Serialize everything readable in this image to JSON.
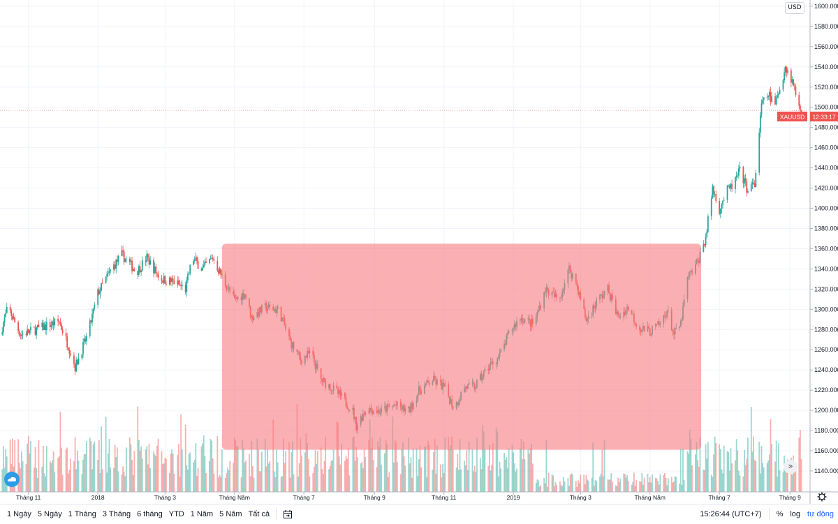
{
  "chart_data": {
    "type": "candlestick",
    "symbol": "XAUUSD",
    "currency": "USD",
    "price_axis": {
      "ticks": [
        1600,
        1580,
        1560,
        1540,
        1520,
        1500,
        1480,
        1460,
        1440,
        1420,
        1400,
        1380,
        1360,
        1340,
        1320,
        1300,
        1280,
        1260,
        1240,
        1220,
        1200,
        1180,
        1160,
        1140
      ],
      "range": [
        1128,
        1605
      ]
    },
    "time_axis": {
      "ticks": [
        {
          "date": "2017-11-01",
          "label": "Tháng 11"
        },
        {
          "date": "2018-01-01",
          "label": "2018"
        },
        {
          "date": "2018-03-01",
          "label": "Tháng 3"
        },
        {
          "date": "2018-05-01",
          "label": "Tháng Năm"
        },
        {
          "date": "2018-07-01",
          "label": "Tháng 7"
        },
        {
          "date": "2018-09-01",
          "label": "Tháng 9"
        },
        {
          "date": "2018-11-01",
          "label": "Tháng 11"
        },
        {
          "date": "2019-01-01",
          "label": "2019"
        },
        {
          "date": "2019-03-01",
          "label": "Tháng 3"
        },
        {
          "date": "2019-05-01",
          "label": "Tháng Năm"
        },
        {
          "date": "2019-07-01",
          "label": "Tháng 7"
        },
        {
          "date": "2019-09-01",
          "label": "Tháng 9"
        }
      ],
      "range": [
        "2017-10-07",
        "2019-12-03"
      ]
    },
    "close_path": [
      [
        "2017-10-07",
        1275
      ],
      [
        "2017-10-14",
        1302
      ],
      [
        "2017-10-25",
        1275
      ],
      [
        "2017-11-13",
        1282
      ],
      [
        "2017-11-28",
        1288
      ],
      [
        "2017-12-07",
        1261
      ],
      [
        "2017-12-12",
        1243
      ],
      [
        "2017-12-23",
        1275
      ],
      [
        "2018-01-01",
        1316
      ],
      [
        "2018-01-13",
        1340
      ],
      [
        "2018-01-22",
        1354
      ],
      [
        "2018-02-04",
        1337
      ],
      [
        "2018-02-13",
        1351
      ],
      [
        "2018-02-25",
        1330
      ],
      [
        "2018-03-09",
        1327
      ],
      [
        "2018-03-19",
        1320
      ],
      [
        "2018-03-25",
        1351
      ],
      [
        "2018-04-03",
        1340
      ],
      [
        "2018-04-12",
        1351
      ],
      [
        "2018-04-21",
        1330
      ],
      [
        "2018-05-01",
        1309
      ],
      [
        "2018-05-10",
        1316
      ],
      [
        "2018-05-16",
        1292
      ],
      [
        "2018-05-28",
        1302
      ],
      [
        "2018-06-09",
        1299
      ],
      [
        "2018-06-19",
        1268
      ],
      [
        "2018-06-28",
        1250
      ],
      [
        "2018-07-07",
        1257
      ],
      [
        "2018-07-16",
        1230
      ],
      [
        "2018-07-25",
        1223
      ],
      [
        "2018-08-04",
        1212
      ],
      [
        "2018-08-13",
        1199
      ],
      [
        "2018-08-16",
        1185
      ],
      [
        "2018-08-25",
        1202
      ],
      [
        "2018-09-06",
        1199
      ],
      [
        "2018-09-19",
        1205
      ],
      [
        "2018-10-01",
        1199
      ],
      [
        "2018-10-10",
        1219
      ],
      [
        "2018-10-22",
        1230
      ],
      [
        "2018-11-01",
        1223
      ],
      [
        "2018-11-10",
        1202
      ],
      [
        "2018-11-19",
        1223
      ],
      [
        "2018-11-28",
        1223
      ],
      [
        "2018-12-10",
        1243
      ],
      [
        "2018-12-20",
        1254
      ],
      [
        "2018-12-29",
        1278
      ],
      [
        "2019-01-07",
        1292
      ],
      [
        "2019-01-19",
        1285
      ],
      [
        "2019-01-29",
        1320
      ],
      [
        "2019-02-10",
        1309
      ],
      [
        "2019-02-19",
        1340
      ],
      [
        "2019-02-25",
        1327
      ],
      [
        "2019-03-06",
        1289
      ],
      [
        "2019-03-16",
        1309
      ],
      [
        "2019-03-25",
        1320
      ],
      [
        "2019-04-03",
        1292
      ],
      [
        "2019-04-12",
        1302
      ],
      [
        "2019-04-21",
        1282
      ],
      [
        "2019-05-01",
        1278
      ],
      [
        "2019-05-10",
        1285
      ],
      [
        "2019-05-16",
        1299
      ],
      [
        "2019-05-22",
        1275
      ],
      [
        "2019-05-28",
        1285
      ],
      [
        "2019-06-03",
        1330
      ],
      [
        "2019-06-12",
        1347
      ],
      [
        "2019-06-19",
        1371
      ],
      [
        "2019-06-25",
        1420
      ],
      [
        "2019-07-01",
        1399
      ],
      [
        "2019-07-07",
        1416
      ],
      [
        "2019-07-13",
        1423
      ],
      [
        "2019-07-19",
        1437
      ],
      [
        "2019-07-25",
        1420
      ],
      [
        "2019-08-01",
        1423
      ],
      [
        "2019-08-07",
        1502
      ],
      [
        "2019-08-13",
        1513
      ],
      [
        "2019-08-19",
        1502
      ],
      [
        "2019-08-28",
        1540
      ],
      [
        "2019-09-03",
        1526
      ],
      [
        "2019-09-09",
        1502
      ],
      [
        "2019-09-12",
        1497
      ]
    ],
    "last_price_label": {
      "symbol": "XAUUSD",
      "countdown": "12:33:17",
      "price": 1497,
      "color": "#ef5350"
    },
    "highlight_box": {
      "from": [
        "2018-04-20",
        1365
      ],
      "to": [
        "2019-06-15",
        1161
      ],
      "color": "#f77c80"
    },
    "colors": {
      "up": "#26a69a",
      "down": "#ef5350"
    },
    "grid": true,
    "legend": "none"
  },
  "toolbar": {
    "ranges": [
      "1 Ngày",
      "5 Ngày",
      "1 Tháng",
      "3 Tháng",
      "6 tháng",
      "YTD",
      "1 Năm",
      "5 Năm",
      "Tất cả"
    ],
    "clock": "15:26:44 (UTC+7)",
    "percent": "%",
    "log": "log",
    "auto": "tự động",
    "auto_color": "#2962ff"
  },
  "scroll_label": "»"
}
